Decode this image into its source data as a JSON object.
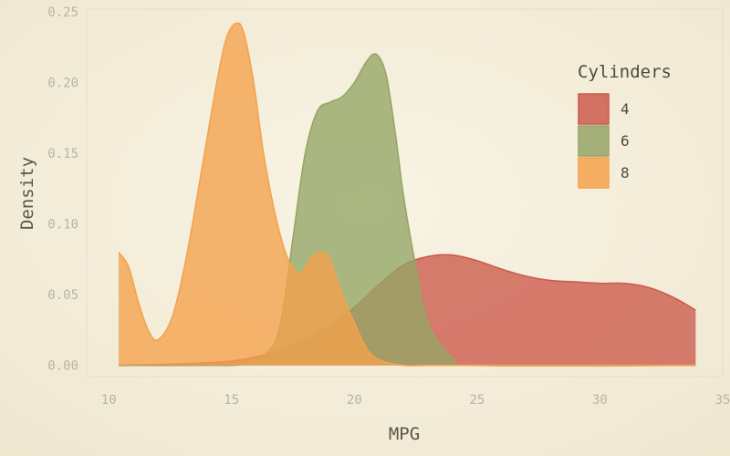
{
  "chart_data": {
    "type": "area",
    "title": "",
    "xlabel": "MPG",
    "ylabel": "Density",
    "xlim": [
      9.1,
      35
    ],
    "ylim": [
      -0.008,
      0.252
    ],
    "x_ticks": [
      10,
      15,
      20,
      25,
      30,
      35
    ],
    "x_tick_labels": [
      "10",
      "15",
      "20",
      "25",
      "30",
      "35"
    ],
    "y_ticks": [
      0,
      0.05,
      0.1,
      0.15,
      0.2,
      0.25
    ],
    "y_tick_labels": [
      "0.00",
      "0.05",
      "0.10",
      "0.15",
      "0.20",
      "0.25"
    ],
    "grid": false,
    "legend": {
      "title": "Cylinders",
      "position": "top-right"
    },
    "series": [
      {
        "name": "4",
        "color": "#cc5a4c",
        "x": [
          10.4,
          13,
          15,
          16,
          17,
          18,
          19,
          20,
          21,
          22,
          23,
          24,
          25,
          26,
          27,
          28,
          29,
          30,
          31,
          32,
          33,
          33.9
        ],
        "y": [
          0.0,
          0.001,
          0.003,
          0.006,
          0.011,
          0.018,
          0.028,
          0.041,
          0.057,
          0.071,
          0.077,
          0.078,
          0.074,
          0.068,
          0.063,
          0.06,
          0.059,
          0.058,
          0.058,
          0.055,
          0.048,
          0.039
        ]
      },
      {
        "name": "6",
        "color": "#95a565",
        "x": [
          10.4,
          14,
          15.5,
          16.5,
          17,
          17.5,
          18,
          18.5,
          19,
          19.5,
          20,
          20.5,
          20.9,
          21.3,
          21.7,
          22,
          22.5,
          23,
          24,
          25,
          33.9
        ],
        "y": [
          0.0,
          0.0,
          0.001,
          0.01,
          0.03,
          0.09,
          0.15,
          0.18,
          0.186,
          0.19,
          0.2,
          0.215,
          0.22,
          0.205,
          0.16,
          0.12,
          0.07,
          0.03,
          0.005,
          0.0,
          0.0
        ]
      },
      {
        "name": "8",
        "color": "#f4a24c",
        "x": [
          10.4,
          10.8,
          11.2,
          11.6,
          12,
          12.6,
          13.2,
          13.8,
          14.4,
          14.8,
          15.2,
          15.5,
          15.9,
          16.3,
          16.8,
          17.3,
          17.8,
          18.2,
          18.6,
          19,
          19.5,
          20,
          20.5,
          21,
          22,
          23,
          25,
          33.9
        ],
        "y": [
          0.08,
          0.07,
          0.045,
          0.025,
          0.018,
          0.035,
          0.08,
          0.14,
          0.2,
          0.232,
          0.242,
          0.235,
          0.2,
          0.15,
          0.105,
          0.075,
          0.065,
          0.075,
          0.08,
          0.075,
          0.05,
          0.03,
          0.012,
          0.004,
          0.0,
          0.0,
          0.0,
          0.0
        ]
      }
    ]
  }
}
